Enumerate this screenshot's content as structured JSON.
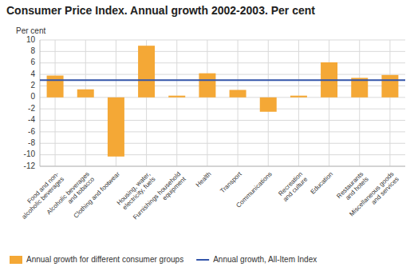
{
  "chart_data": {
    "type": "bar",
    "title": "Consumer Price Index. Annual growth 2002-2003. Per cent",
    "y_label": "Per cent",
    "categories": [
      "Food and non-\nalcoholic beverages",
      "Alcoholic beverages\nand tobacco",
      "Clothing and footwear",
      "Housing, water,\nelectricity, fuels",
      "Furnishings household\nequipment",
      "Health",
      "Transport",
      "Communications",
      "Recreation\nand culture",
      "Education",
      "Restaurants\nand hotels",
      "Miscellaneous goods\nand services"
    ],
    "series": [
      {
        "name": "Annual growth for different consumer groups",
        "color": "#f4a836",
        "values": [
          3.8,
          1.4,
          -10.3,
          9.0,
          0.3,
          4.2,
          1.3,
          -2.5,
          0.3,
          6.1,
          3.4,
          3.9
        ]
      }
    ],
    "reference_lines": [
      {
        "name": "Annual growth, All-Item Index",
        "value": 3.0,
        "color": "#3355aa"
      }
    ],
    "ylim": [
      -12,
      10
    ],
    "yticks": [
      -12,
      -10,
      -8,
      -6,
      -4,
      -2,
      0,
      2,
      4,
      6,
      8,
      10
    ],
    "grid": true,
    "legend": "bottom"
  }
}
